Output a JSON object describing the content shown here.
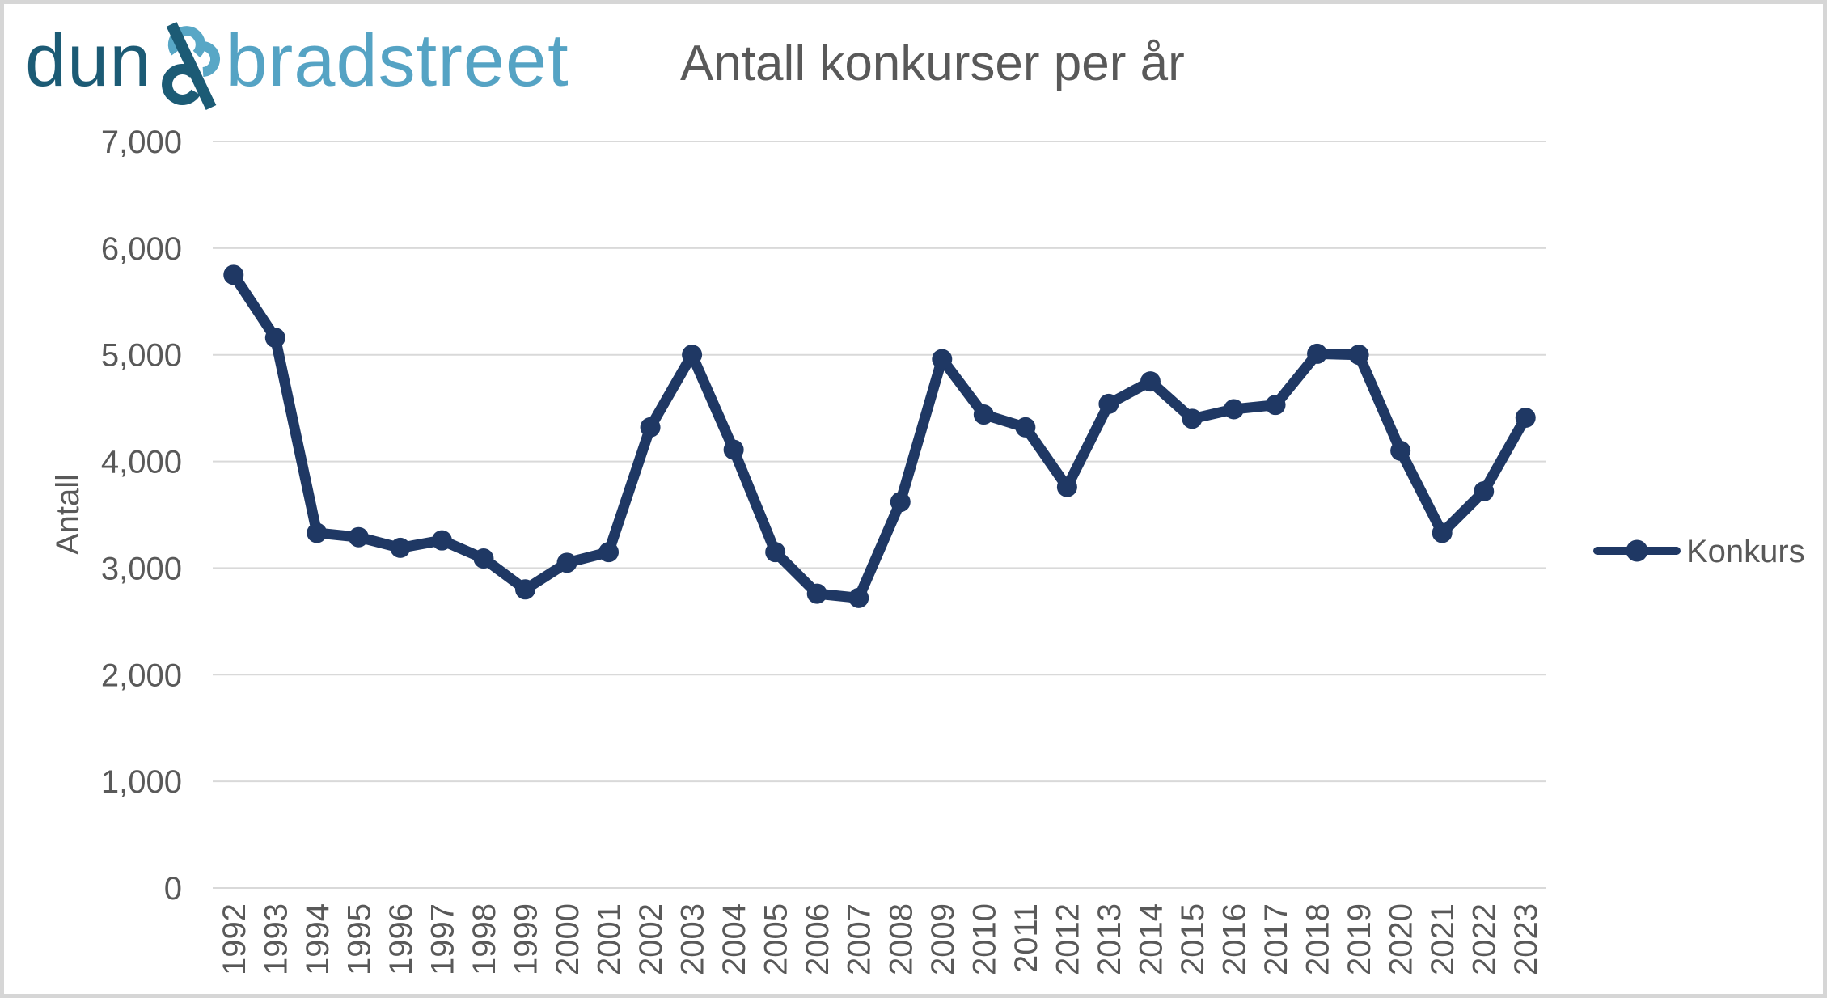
{
  "logo": {
    "word1": "dun",
    "ampersand": "&",
    "word2": "bradstreet"
  },
  "header": {
    "title": "Antall konkurser per år"
  },
  "legend": {
    "label": "Konkurs"
  },
  "colors": {
    "series": "#1F3864",
    "grid": "#D9D9D9",
    "text": "#595959",
    "logo_dark": "#1C5B75",
    "logo_light": "#58A7C6",
    "border": "#D6D6D6",
    "background": "#FFFFFF"
  },
  "chart_data": {
    "type": "line",
    "title": "Antall konkurser per år",
    "xlabel": "",
    "ylabel": "Antall",
    "ylim": [
      0,
      7000
    ],
    "ytick_step": 1000,
    "grid": true,
    "legend_position": "right",
    "marker": "circle",
    "categories": [
      "1992",
      "1993",
      "1994",
      "1995",
      "1996",
      "1997",
      "1998",
      "1999",
      "2000",
      "2001",
      "2002",
      "2003",
      "2004",
      "2005",
      "2006",
      "2007",
      "2008",
      "2009",
      "2010",
      "2011",
      "2012",
      "2013",
      "2014",
      "2015",
      "2016",
      "2017",
      "2018",
      "2019",
      "2020",
      "2021",
      "2022",
      "2023"
    ],
    "series": [
      {
        "name": "Konkurs",
        "values": [
          5750,
          5160,
          3330,
          3290,
          3190,
          3260,
          3090,
          2800,
          3050,
          3150,
          4320,
          5000,
          4110,
          3150,
          2760,
          2720,
          3620,
          4960,
          4440,
          4320,
          3760,
          4540,
          4750,
          4400,
          4490,
          4530,
          5010,
          5000,
          4100,
          3330,
          3720,
          4410
        ]
      }
    ]
  }
}
